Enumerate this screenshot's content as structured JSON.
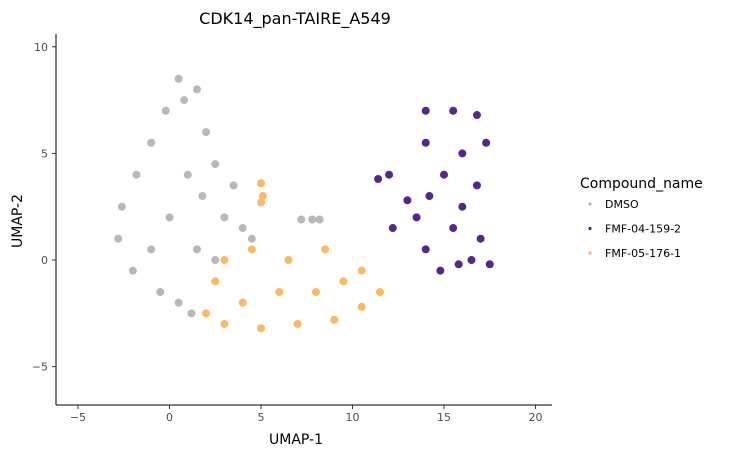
{
  "chart_data": {
    "type": "scatter",
    "title": "CDK14_pan-TAIRE_A549",
    "xlabel": "UMAP-1",
    "ylabel": "UMAP-2",
    "xlim": [
      -6.2,
      20.9
    ],
    "ylim": [
      -6.8,
      10.6
    ],
    "x_ticks": [
      -5,
      0,
      5,
      10,
      15,
      20
    ],
    "y_ticks": [
      -5,
      0,
      5,
      10
    ],
    "grid": false,
    "legend": {
      "title": "Compound_name",
      "placement": "right",
      "entries": [
        "DMSO",
        "FMF-04-159-2",
        "FMF-05-176-1"
      ]
    },
    "series": [
      {
        "name": "DMSO",
        "color": "#b8b8b8",
        "points": [
          [
            0.5,
            8.5
          ],
          [
            -0.2,
            7.0
          ],
          [
            -1.0,
            5.5
          ],
          [
            -1.8,
            4.0
          ],
          [
            -2.6,
            2.5
          ],
          [
            -2.8,
            1.0
          ],
          [
            -2.0,
            -0.5
          ],
          [
            -0.5,
            -1.5
          ],
          [
            0.5,
            -2.0
          ],
          [
            1.2,
            -2.5
          ],
          [
            1.5,
            0.5
          ],
          [
            1.8,
            3.0
          ],
          [
            2.5,
            4.5
          ],
          [
            3.0,
            2.0
          ],
          [
            4.0,
            1.5
          ],
          [
            2.0,
            6.0
          ],
          [
            1.0,
            4.0
          ],
          [
            0.0,
            2.0
          ],
          [
            -1.0,
            0.5
          ],
          [
            1.5,
            8.0
          ],
          [
            0.8,
            7.5
          ],
          [
            3.5,
            3.5
          ],
          [
            4.5,
            1.0
          ],
          [
            2.5,
            0.0
          ],
          [
            7.2,
            1.9
          ],
          [
            7.8,
            1.9
          ],
          [
            8.2,
            1.9
          ]
        ]
      },
      {
        "name": "FMF-04-159-2",
        "color": "#54278f",
        "points": [
          [
            14.0,
            7.0
          ],
          [
            15.5,
            7.0
          ],
          [
            16.8,
            6.8
          ],
          [
            17.3,
            5.5
          ],
          [
            14.0,
            5.5
          ],
          [
            16.0,
            5.0
          ],
          [
            15.0,
            4.0
          ],
          [
            16.8,
            3.5
          ],
          [
            14.2,
            3.0
          ],
          [
            16.0,
            2.5
          ],
          [
            13.5,
            2.0
          ],
          [
            15.5,
            1.5
          ],
          [
            17.0,
            1.0
          ],
          [
            14.0,
            0.5
          ],
          [
            16.5,
            0.0
          ],
          [
            14.8,
            -0.5
          ],
          [
            15.8,
            -0.2
          ],
          [
            12.2,
            1.5
          ],
          [
            12.0,
            4.0
          ],
          [
            11.4,
            3.8
          ],
          [
            13.0,
            2.8
          ],
          [
            17.5,
            -0.2
          ]
        ]
      },
      {
        "name": "FMF-05-176-1",
        "color": "#fdb863",
        "points": [
          [
            2.0,
            -2.5
          ],
          [
            3.0,
            -3.0
          ],
          [
            5.0,
            -3.2
          ],
          [
            7.0,
            -3.0
          ],
          [
            9.0,
            -2.8
          ],
          [
            10.5,
            -2.2
          ],
          [
            11.5,
            -1.5
          ],
          [
            10.5,
            -0.5
          ],
          [
            8.5,
            0.5
          ],
          [
            6.5,
            0.0
          ],
          [
            4.5,
            0.5
          ],
          [
            3.0,
            0.0
          ],
          [
            2.5,
            -1.0
          ],
          [
            4.0,
            -2.0
          ],
          [
            6.0,
            -1.5
          ],
          [
            8.0,
            -1.5
          ],
          [
            9.5,
            -1.0
          ],
          [
            5.0,
            3.6
          ],
          [
            5.1,
            3.0
          ],
          [
            5.0,
            2.7
          ]
        ]
      }
    ]
  }
}
